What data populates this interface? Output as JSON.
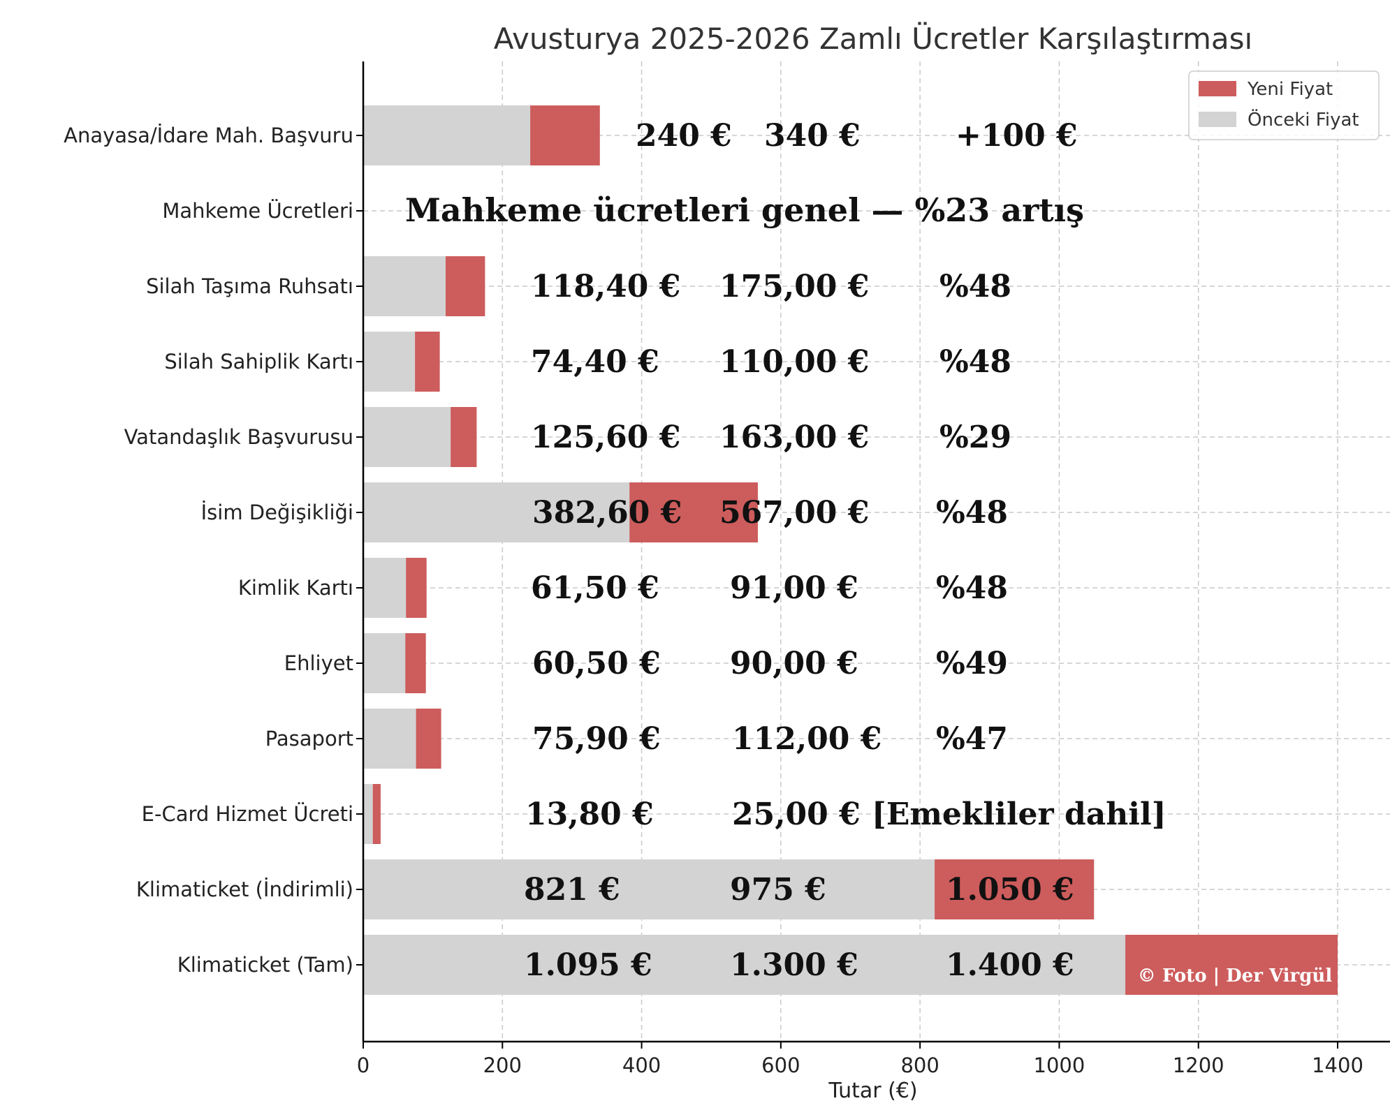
{
  "chart_data": {
    "type": "bar",
    "orientation": "horizontal",
    "stacked_overlay": true,
    "title": "Avusturya 2025-2026 Zamlı Ücretler Karşılaştırması",
    "xlabel": "Tutar (€)",
    "xlim": [
      0,
      1400
    ],
    "xticks": [
      0,
      200,
      400,
      600,
      800,
      1000,
      1200,
      1400
    ],
    "grid": true,
    "legend_position": "top-right",
    "legend": [
      {
        "label": "Yeni Fiyat",
        "color": "#cd5c5c"
      },
      {
        "label": "Önceki Fiyat",
        "color": "#d3d3d3"
      }
    ],
    "categories": [
      "Anayasa/İdare Mah. Başvuru",
      "Mahkeme Ücretleri",
      "Silah Taşıma Ruhsatı",
      "Silah Sahiplik Kartı",
      "Vatandaşlık Başvurusu",
      "İsim Değişikliği",
      "Kimlik Kartı",
      "Ehliyet",
      "Pasaport",
      "E-Card Hizmet Ücreti",
      "Klimaticket (İndirimli)",
      "Klimaticket (Tam)"
    ],
    "series": [
      {
        "name": "Yeni Fiyat",
        "color": "#cd5c5c",
        "values": [
          340,
          null,
          175,
          110,
          163,
          567,
          91,
          90,
          112,
          25,
          1050,
          1400
        ]
      },
      {
        "name": "Önceki Fiyat",
        "color": "#d3d3d3",
        "values": [
          240,
          null,
          118.4,
          74.4,
          125.6,
          382.6,
          61.5,
          60.5,
          75.9,
          13.8,
          821,
          1095
        ]
      }
    ],
    "annotations": [
      [
        "240 €",
        "340 €",
        "+100 €"
      ],
      [
        "Mahkeme ücretleri genel — %23 artış"
      ],
      [
        "118,40 €",
        "175,00 €",
        "%48"
      ],
      [
        "74,40 €",
        "110,00 €",
        "%48"
      ],
      [
        "125,60 €",
        "163,00 €",
        "%29"
      ],
      [
        "382,60 €",
        "567,00 €",
        "%48"
      ],
      [
        "61,50 €",
        "91,00 €",
        "%48"
      ],
      [
        "60,50 €",
        "90,00 €",
        "%49"
      ],
      [
        "75,90 €",
        "112,00 €",
        "%47"
      ],
      [
        "13,80 €",
        "25,00 €",
        "[Emekliler dahil]"
      ],
      [
        "821 €",
        "975 €",
        "1.050 €"
      ],
      [
        "1.095 €",
        "1.300 €",
        "1.400 €"
      ]
    ],
    "watermark": "© Foto | Der Virgül"
  }
}
